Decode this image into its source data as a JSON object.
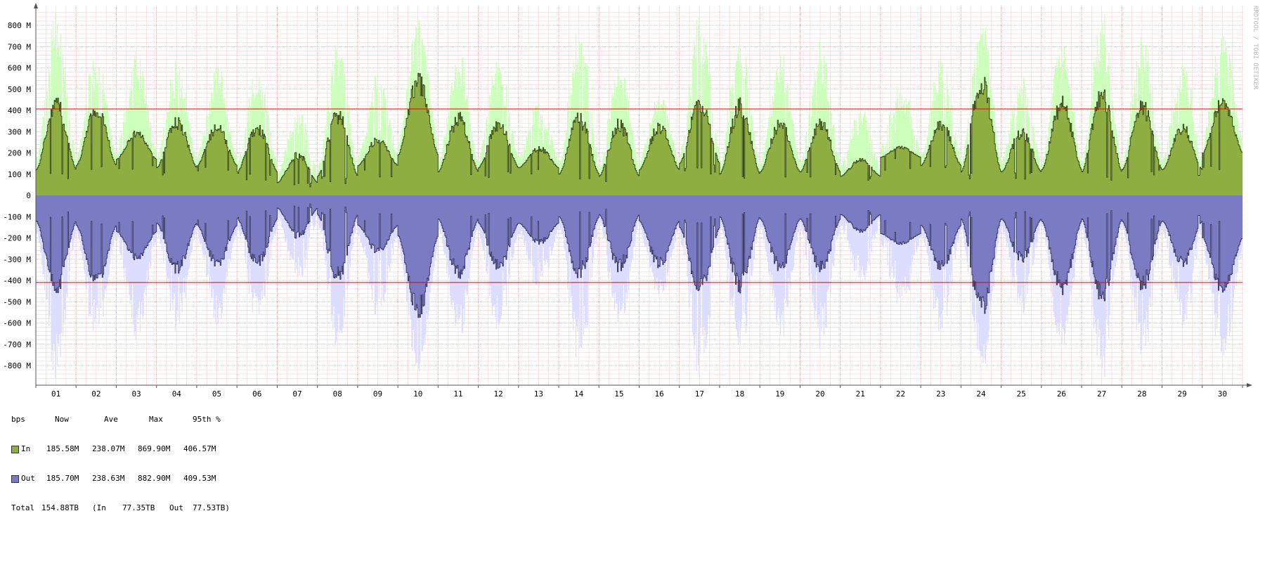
{
  "chart_data": {
    "type": "area",
    "watermark": "RRDTOOL / TOBI OETIKER",
    "y_tick_labels": [
      "800 M",
      "700 M",
      "600 M",
      "500 M",
      "400 M",
      "300 M",
      "200 M",
      "100 M",
      "0",
      "-100 M",
      "-200 M",
      "-300 M",
      "-400 M",
      "-500 M",
      "-600 M",
      "-700 M",
      "-800 M"
    ],
    "y_ticks_mbps": [
      800,
      700,
      600,
      500,
      400,
      300,
      200,
      100,
      0,
      -100,
      -200,
      -300,
      -400,
      -500,
      -600,
      -700,
      -800
    ],
    "ylim_mbps": [
      -880,
      880
    ],
    "x_tick_labels": [
      "01",
      "02",
      "03",
      "04",
      "05",
      "06",
      "07",
      "08",
      "09",
      "10",
      "11",
      "12",
      "13",
      "14",
      "15",
      "16",
      "17",
      "18",
      "19",
      "20",
      "21",
      "22",
      "23",
      "24",
      "25",
      "26",
      "27",
      "28",
      "29",
      "30"
    ],
    "days": 30,
    "percentile_95_mbps": {
      "in": 406.57,
      "out": 409.53
    },
    "colors": {
      "in_avg": "#8fae42",
      "in_max": "#ccffbb",
      "out_avg": "#7b7bc4",
      "out_max": "#ddddff",
      "percentile_line": "#e00000",
      "grid_minor": "#f0d4d4",
      "grid_major": "#f2a8a8"
    },
    "series": [
      {
        "name": "In",
        "kind": "average",
        "daily_peak_mbps": [
          450,
          430,
          300,
          360,
          330,
          330,
          200,
          400,
          270,
          560,
          380,
          350,
          230,
          380,
          350,
          340,
          460,
          440,
          350,
          360,
          170,
          230,
          350,
          560,
          310,
          450,
          500,
          440,
          330,
          460
        ],
        "daily_base_mbps": [
          120,
          140,
          170,
          130,
          140,
          110,
          60,
          90,
          140,
          190,
          110,
          130,
          130,
          100,
          90,
          120,
          150,
          100,
          110,
          110,
          90,
          180,
          140,
          110,
          110,
          120,
          110,
          120,
          120,
          200
        ]
      },
      {
        "name": "In",
        "kind": "max",
        "daily_peak_mbps": [
          860,
          650,
          660,
          610,
          600,
          590,
          400,
          700,
          560,
          830,
          650,
          630,
          420,
          760,
          600,
          470,
          830,
          750,
          680,
          700,
          400,
          520,
          640,
          830,
          540,
          720,
          820,
          730,
          620,
          770
        ]
      },
      {
        "name": "Out",
        "kind": "average_negative",
        "daily_peak_mbps": [
          450,
          430,
          300,
          360,
          330,
          330,
          200,
          400,
          270,
          560,
          380,
          350,
          230,
          380,
          350,
          340,
          460,
          440,
          350,
          360,
          170,
          230,
          350,
          560,
          310,
          450,
          500,
          440,
          330,
          460
        ],
        "daily_base_mbps": [
          120,
          140,
          170,
          130,
          140,
          110,
          60,
          90,
          140,
          190,
          110,
          130,
          130,
          100,
          90,
          120,
          150,
          100,
          110,
          110,
          90,
          180,
          140,
          110,
          110,
          120,
          110,
          120,
          120,
          200
        ]
      },
      {
        "name": "Out",
        "kind": "max_negative",
        "daily_peak_mbps": [
          860,
          650,
          660,
          610,
          600,
          590,
          400,
          700,
          560,
          830,
          650,
          630,
          420,
          760,
          600,
          470,
          830,
          750,
          680,
          700,
          400,
          520,
          640,
          830,
          540,
          720,
          820,
          730,
          620,
          770
        ]
      }
    ]
  },
  "legend": {
    "unit": "bps",
    "col_now": "Now",
    "col_ave": "Ave",
    "col_max": "Max",
    "col_95": "95th %",
    "in": {
      "label": "In",
      "now": "185.58M",
      "ave": "238.07M",
      "max": "869.90M",
      "p95": "406.57M"
    },
    "out": {
      "label": "Out",
      "now": "185.70M",
      "ave": "238.63M",
      "max": "882.90M",
      "p95": "409.53M"
    },
    "total": {
      "label": "Total",
      "value": "154.88TB",
      "in_label": "(In",
      "in_value": "77.35TB",
      "out_label": "Out",
      "out_value": "77.53TB)"
    }
  }
}
